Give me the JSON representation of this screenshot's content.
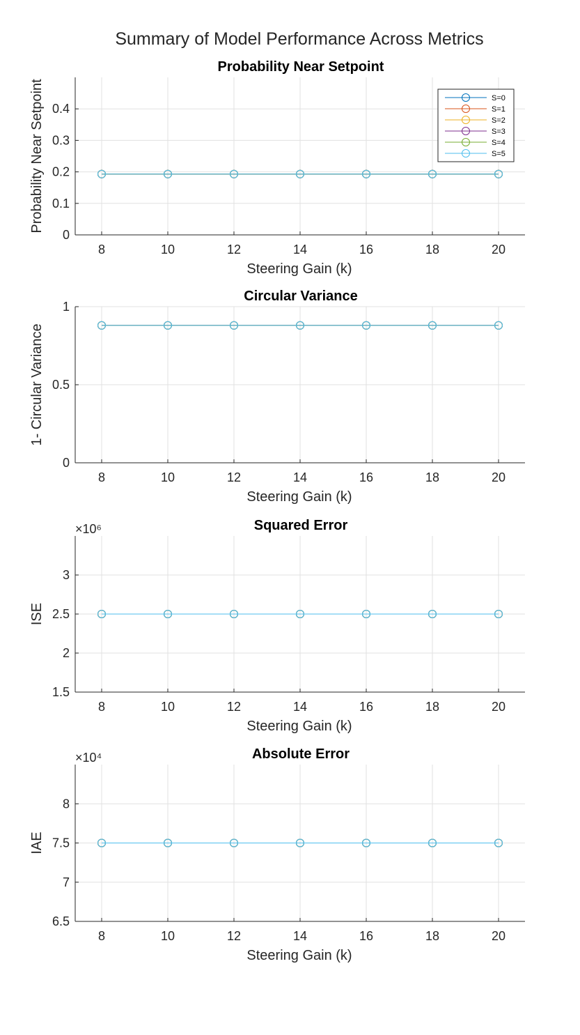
{
  "figure_title": "Summary of Model Performance Across Metrics",
  "chart_data": [
    {
      "type": "line",
      "title": "Probability Near Setpoint",
      "xlabel": "Steering Gain (k)",
      "ylabel": "Probability Near Setpoint",
      "x": [
        8,
        10,
        12,
        14,
        16,
        18,
        20
      ],
      "xticks": [
        "8",
        "10",
        "12",
        "14",
        "16",
        "18",
        "20"
      ],
      "xlim": [
        7.2,
        20.8
      ],
      "ylim": [
        0,
        0.5
      ],
      "yticks": [
        0,
        0.1,
        0.2,
        0.3,
        0.4
      ],
      "yticklabels": [
        "0",
        "0.1",
        "0.2",
        "0.3",
        "0.4"
      ],
      "exponent": "",
      "grid": true,
      "marker": "circle-open",
      "legend": {
        "position": "top-right"
      },
      "series": [
        {
          "name": "S=0",
          "color": "#0072BD",
          "values": [
            0.193,
            0.193,
            0.193,
            0.193,
            0.193,
            0.193,
            0.193
          ]
        },
        {
          "name": "S=1",
          "color": "#D95319",
          "values": [
            0.193,
            0.193,
            0.193,
            0.193,
            0.193,
            0.193,
            0.193
          ]
        },
        {
          "name": "S=2",
          "color": "#EDB120",
          "values": [
            0.193,
            0.193,
            0.193,
            0.193,
            0.193,
            0.193,
            0.193
          ]
        },
        {
          "name": "S=3",
          "color": "#7E2F8E",
          "values": [
            0.193,
            0.193,
            0.193,
            0.193,
            0.193,
            0.193,
            0.193
          ]
        },
        {
          "name": "S=4",
          "color": "#77AC30",
          "values": [
            0.193,
            0.193,
            0.193,
            0.193,
            0.193,
            0.193,
            0.193
          ]
        },
        {
          "name": "S=5",
          "color": "#4DBEEE",
          "values": [
            0.193,
            0.193,
            0.193,
            0.193,
            0.193,
            0.193,
            0.193
          ]
        }
      ]
    },
    {
      "type": "line",
      "title": "Circular Variance",
      "xlabel": "Steering Gain (k)",
      "ylabel": "1- Circular Variance",
      "x": [
        8,
        10,
        12,
        14,
        16,
        18,
        20
      ],
      "xticks": [
        "8",
        "10",
        "12",
        "14",
        "16",
        "18",
        "20"
      ],
      "xlim": [
        7.2,
        20.8
      ],
      "ylim": [
        0,
        1
      ],
      "yticks": [
        0,
        0.5,
        1
      ],
      "yticklabels": [
        "0",
        "0.5",
        "1"
      ],
      "exponent": "",
      "grid": true,
      "marker": "circle-open",
      "series": [
        {
          "color": "#0072BD",
          "values": [
            0.88,
            0.88,
            0.88,
            0.88,
            0.88,
            0.88,
            0.88
          ]
        },
        {
          "color": "#D95319",
          "values": [
            0.88,
            0.88,
            0.88,
            0.88,
            0.88,
            0.88,
            0.88
          ]
        },
        {
          "color": "#EDB120",
          "values": [
            0.88,
            0.88,
            0.88,
            0.88,
            0.88,
            0.88,
            0.88
          ]
        },
        {
          "color": "#7E2F8E",
          "values": [
            0.88,
            0.88,
            0.88,
            0.88,
            0.88,
            0.88,
            0.88
          ]
        },
        {
          "color": "#77AC30",
          "values": [
            0.88,
            0.88,
            0.88,
            0.88,
            0.88,
            0.88,
            0.88
          ]
        },
        {
          "color": "#4DBEEE",
          "values": [
            0.88,
            0.88,
            0.88,
            0.88,
            0.88,
            0.88,
            0.88
          ]
        }
      ]
    },
    {
      "type": "line",
      "title": "Squared Error",
      "xlabel": "Steering Gain (k)",
      "ylabel": "ISE",
      "x": [
        8,
        10,
        12,
        14,
        16,
        18,
        20
      ],
      "xticks": [
        "8",
        "10",
        "12",
        "14",
        "16",
        "18",
        "20"
      ],
      "xlim": [
        7.2,
        20.8
      ],
      "ylim": [
        1500000,
        3500000
      ],
      "yticks": [
        1500000,
        2000000,
        2500000,
        3000000
      ],
      "yticklabels": [
        "1.5",
        "2",
        "2.5",
        "3"
      ],
      "exponent": "×10⁶",
      "grid": true,
      "marker": "circle-open",
      "series": [
        {
          "color": "#0072BD",
          "values": [
            2500000,
            2500000,
            2500000,
            2500000,
            2500000,
            2500000,
            2500000
          ]
        },
        {
          "color": "#D95319",
          "values": [
            2500000,
            2500000,
            2500000,
            2500000,
            2500000,
            2500000,
            2500000
          ]
        },
        {
          "color": "#EDB120",
          "values": [
            2500000,
            2500000,
            2500000,
            2500000,
            2500000,
            2500000,
            2500000
          ]
        },
        {
          "color": "#7E2F8E",
          "values": [
            2500000,
            2500000,
            2500000,
            2500000,
            2500000,
            2500000,
            2500000
          ]
        },
        {
          "color": "#77AC30",
          "values": [
            2500000,
            2500000,
            2500000,
            2500000,
            2500000,
            2500000,
            2500000
          ]
        },
        {
          "color": "#4DBEEE",
          "values": [
            2500000,
            2500000,
            2500000,
            2500000,
            2500000,
            2500000,
            2500000
          ]
        }
      ]
    },
    {
      "type": "line",
      "title": "Absolute Error",
      "xlabel": "Steering Gain (k)",
      "ylabel": "IAE",
      "x": [
        8,
        10,
        12,
        14,
        16,
        18,
        20
      ],
      "xticks": [
        "8",
        "10",
        "12",
        "14",
        "16",
        "18",
        "20"
      ],
      "xlim": [
        7.2,
        20.8
      ],
      "ylim": [
        65000,
        85000
      ],
      "yticks": [
        65000,
        70000,
        75000,
        80000
      ],
      "yticklabels": [
        "6.5",
        "7",
        "7.5",
        "8"
      ],
      "exponent": "×10⁴",
      "grid": true,
      "marker": "circle-open",
      "series": [
        {
          "color": "#0072BD",
          "values": [
            75000,
            75000,
            75000,
            75000,
            75000,
            75000,
            75000
          ]
        },
        {
          "color": "#D95319",
          "values": [
            75000,
            75000,
            75000,
            75000,
            75000,
            75000,
            75000
          ]
        },
        {
          "color": "#EDB120",
          "values": [
            75000,
            75000,
            75000,
            75000,
            75000,
            75000,
            75000
          ]
        },
        {
          "color": "#7E2F8E",
          "values": [
            75000,
            75000,
            75000,
            75000,
            75000,
            75000,
            75000
          ]
        },
        {
          "color": "#77AC30",
          "values": [
            75000,
            75000,
            75000,
            75000,
            75000,
            75000,
            75000
          ]
        },
        {
          "color": "#4DBEEE",
          "values": [
            75000,
            75000,
            75000,
            75000,
            75000,
            75000,
            75000
          ]
        }
      ]
    }
  ]
}
